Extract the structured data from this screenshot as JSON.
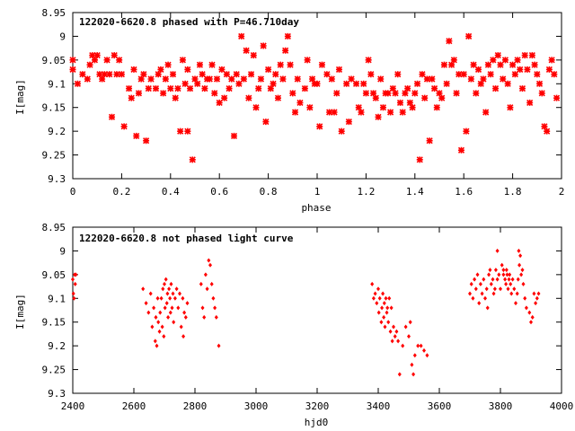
{
  "chart_data": [
    {
      "type": "scatter",
      "title": "122020-6620.8 phased with P=46.710day",
      "xlabel": "phase",
      "ylabel": "I[mag]",
      "xlim": [
        0,
        2
      ],
      "ylim": [
        9.3,
        8.95
      ],
      "y_inverted": true,
      "xticks": [
        "0",
        "0.2",
        "0.4",
        "0.6",
        "0.8",
        "1",
        "1.2",
        "1.4",
        "1.6",
        "1.8",
        "2"
      ],
      "yticks": [
        "8.95",
        "9",
        "9.05",
        "9.1",
        "9.15",
        "9.2",
        "9.25",
        "9.3"
      ],
      "marker": "star",
      "color": "#ff0000",
      "grid": false,
      "points": [
        [
          0.0,
          9.05
        ],
        [
          0.0,
          9.07
        ],
        [
          0.02,
          9.1
        ],
        [
          0.04,
          9.08
        ],
        [
          0.06,
          9.09
        ],
        [
          0.07,
          9.06
        ],
        [
          0.08,
          9.04
        ],
        [
          0.09,
          9.05
        ],
        [
          0.1,
          9.04
        ],
        [
          0.11,
          9.08
        ],
        [
          0.12,
          9.09
        ],
        [
          0.13,
          9.08
        ],
        [
          0.14,
          9.05
        ],
        [
          0.15,
          9.08
        ],
        [
          0.16,
          9.17
        ],
        [
          0.17,
          9.04
        ],
        [
          0.18,
          9.08
        ],
        [
          0.19,
          9.05
        ],
        [
          0.2,
          9.08
        ],
        [
          0.21,
          9.19
        ],
        [
          0.23,
          9.11
        ],
        [
          0.24,
          9.13
        ],
        [
          0.25,
          9.07
        ],
        [
          0.26,
          9.21
        ],
        [
          0.27,
          9.12
        ],
        [
          0.28,
          9.09
        ],
        [
          0.29,
          9.08
        ],
        [
          0.3,
          9.22
        ],
        [
          0.31,
          9.11
        ],
        [
          0.32,
          9.09
        ],
        [
          0.34,
          9.11
        ],
        [
          0.35,
          9.08
        ],
        [
          0.36,
          9.07
        ],
        [
          0.37,
          9.12
        ],
        [
          0.38,
          9.09
        ],
        [
          0.39,
          9.06
        ],
        [
          0.4,
          9.11
        ],
        [
          0.41,
          9.08
        ],
        [
          0.42,
          9.13
        ],
        [
          0.43,
          9.11
        ],
        [
          0.44,
          9.2
        ],
        [
          0.45,
          9.05
        ],
        [
          0.46,
          9.1
        ],
        [
          0.47,
          9.07
        ],
        [
          0.47,
          9.2
        ],
        [
          0.48,
          9.11
        ],
        [
          0.49,
          9.26
        ],
        [
          0.5,
          9.09
        ],
        [
          0.51,
          9.1
        ],
        [
          0.52,
          9.06
        ],
        [
          0.53,
          9.08
        ],
        [
          0.54,
          9.11
        ],
        [
          0.55,
          9.09
        ],
        [
          0.56,
          9.09
        ],
        [
          0.57,
          9.06
        ],
        [
          0.58,
          9.12
        ],
        [
          0.59,
          9.09
        ],
        [
          0.6,
          9.14
        ],
        [
          0.61,
          9.07
        ],
        [
          0.62,
          9.13
        ],
        [
          0.63,
          9.08
        ],
        [
          0.64,
          9.11
        ],
        [
          0.65,
          9.09
        ],
        [
          0.66,
          9.21
        ],
        [
          0.67,
          9.08
        ],
        [
          0.68,
          9.1
        ],
        [
          0.69,
          9.0
        ],
        [
          0.7,
          9.09
        ],
        [
          0.71,
          9.03
        ],
        [
          0.72,
          9.13
        ],
        [
          0.73,
          9.08
        ],
        [
          0.74,
          9.04
        ],
        [
          0.75,
          9.15
        ],
        [
          0.76,
          9.11
        ],
        [
          0.77,
          9.09
        ],
        [
          0.78,
          9.02
        ],
        [
          0.79,
          9.18
        ],
        [
          0.8,
          9.07
        ],
        [
          0.81,
          9.11
        ],
        [
          0.82,
          9.1
        ],
        [
          0.83,
          9.08
        ],
        [
          0.84,
          9.13
        ],
        [
          0.85,
          9.06
        ],
        [
          0.86,
          9.09
        ],
        [
          0.87,
          9.03
        ],
        [
          0.88,
          9.0
        ],
        [
          0.89,
          9.06
        ],
        [
          0.9,
          9.12
        ],
        [
          0.91,
          9.16
        ],
        [
          0.92,
          9.09
        ],
        [
          0.93,
          9.14
        ],
        [
          0.95,
          9.11
        ],
        [
          0.96,
          9.05
        ],
        [
          0.97,
          9.15
        ],
        [
          0.98,
          9.09
        ],
        [
          0.99,
          9.1
        ],
        [
          1.0,
          9.1
        ],
        [
          1.01,
          9.19
        ],
        [
          1.02,
          9.06
        ],
        [
          1.04,
          9.08
        ],
        [
          1.05,
          9.16
        ],
        [
          1.06,
          9.09
        ],
        [
          1.07,
          9.16
        ],
        [
          1.08,
          9.12
        ],
        [
          1.09,
          9.07
        ],
        [
          1.1,
          9.2
        ],
        [
          1.12,
          9.1
        ],
        [
          1.13,
          9.18
        ],
        [
          1.14,
          9.09
        ],
        [
          1.16,
          9.1
        ],
        [
          1.17,
          9.15
        ],
        [
          1.18,
          9.16
        ],
        [
          1.19,
          9.1
        ],
        [
          1.2,
          9.12
        ],
        [
          1.21,
          9.05
        ],
        [
          1.22,
          9.08
        ],
        [
          1.23,
          9.12
        ],
        [
          1.24,
          9.13
        ],
        [
          1.25,
          9.17
        ],
        [
          1.26,
          9.09
        ],
        [
          1.27,
          9.15
        ],
        [
          1.28,
          9.12
        ],
        [
          1.29,
          9.12
        ],
        [
          1.3,
          9.16
        ],
        [
          1.31,
          9.11
        ],
        [
          1.32,
          9.12
        ],
        [
          1.33,
          9.08
        ],
        [
          1.34,
          9.14
        ],
        [
          1.35,
          9.16
        ],
        [
          1.36,
          9.12
        ],
        [
          1.37,
          9.11
        ],
        [
          1.38,
          9.14
        ],
        [
          1.39,
          9.15
        ],
        [
          1.4,
          9.12
        ],
        [
          1.41,
          9.1
        ],
        [
          1.42,
          9.26
        ],
        [
          1.43,
          9.08
        ],
        [
          1.44,
          9.13
        ],
        [
          1.45,
          9.09
        ],
        [
          1.46,
          9.22
        ],
        [
          1.47,
          9.09
        ],
        [
          1.48,
          9.11
        ],
        [
          1.49,
          9.15
        ],
        [
          1.5,
          9.12
        ],
        [
          1.51,
          9.13
        ],
        [
          1.52,
          9.06
        ],
        [
          1.53,
          9.1
        ],
        [
          1.54,
          9.01
        ],
        [
          1.55,
          9.06
        ],
        [
          1.56,
          9.05
        ],
        [
          1.57,
          9.12
        ],
        [
          1.58,
          9.08
        ],
        [
          1.59,
          9.24
        ],
        [
          1.6,
          9.08
        ],
        [
          1.61,
          9.2
        ],
        [
          1.62,
          9.0
        ],
        [
          1.63,
          9.09
        ],
        [
          1.64,
          9.06
        ],
        [
          1.65,
          9.12
        ],
        [
          1.66,
          9.07
        ],
        [
          1.67,
          9.1
        ],
        [
          1.68,
          9.09
        ],
        [
          1.69,
          9.16
        ],
        [
          1.7,
          9.06
        ],
        [
          1.71,
          9.08
        ],
        [
          1.72,
          9.05
        ],
        [
          1.73,
          9.11
        ],
        [
          1.74,
          9.04
        ],
        [
          1.75,
          9.06
        ],
        [
          1.76,
          9.09
        ],
        [
          1.77,
          9.05
        ],
        [
          1.78,
          9.1
        ],
        [
          1.79,
          9.15
        ],
        [
          1.8,
          9.06
        ],
        [
          1.81,
          9.08
        ],
        [
          1.82,
          9.05
        ],
        [
          1.83,
          9.07
        ],
        [
          1.84,
          9.11
        ],
        [
          1.85,
          9.04
        ],
        [
          1.86,
          9.07
        ],
        [
          1.87,
          9.14
        ],
        [
          1.88,
          9.04
        ],
        [
          1.89,
          9.06
        ],
        [
          1.9,
          9.08
        ],
        [
          1.91,
          9.1
        ],
        [
          1.92,
          9.12
        ],
        [
          1.93,
          9.19
        ],
        [
          1.94,
          9.2
        ],
        [
          1.95,
          9.07
        ],
        [
          1.96,
          9.05
        ],
        [
          1.97,
          9.08
        ],
        [
          1.98,
          9.13
        ]
      ]
    },
    {
      "type": "scatter",
      "title": "122020-6620.8 not phased light curve",
      "xlabel": "hjd0",
      "ylabel": "I[mag]",
      "xlim": [
        2400,
        4000
      ],
      "ylim": [
        9.3,
        8.95
      ],
      "y_inverted": true,
      "xticks": [
        "2400",
        "2600",
        "2800",
        "3000",
        "3200",
        "3400",
        "3600",
        "3800",
        "4000"
      ],
      "yticks": [
        "8.95",
        "9",
        "9.05",
        "9.1",
        "9.15",
        "9.2",
        "9.25",
        "9.3"
      ],
      "marker": "diamond",
      "color": "#ff0000",
      "grid": false,
      "points": [
        [
          2400,
          9.06
        ],
        [
          2402,
          9.09
        ],
        [
          2404,
          9.1
        ],
        [
          2406,
          9.05
        ],
        [
          2408,
          9.07
        ],
        [
          2410,
          9.05
        ],
        [
          2630,
          9.08
        ],
        [
          2640,
          9.11
        ],
        [
          2648,
          9.13
        ],
        [
          2655,
          9.09
        ],
        [
          2660,
          9.16
        ],
        [
          2665,
          9.12
        ],
        [
          2670,
          9.19
        ],
        [
          2672,
          9.14
        ],
        [
          2675,
          9.2
        ],
        [
          2678,
          9.1
        ],
        [
          2680,
          9.15
        ],
        [
          2684,
          9.17
        ],
        [
          2686,
          9.13
        ],
        [
          2690,
          9.1
        ],
        [
          2693,
          9.16
        ],
        [
          2695,
          9.08
        ],
        [
          2698,
          9.18
        ],
        [
          2700,
          9.07
        ],
        [
          2702,
          9.12
        ],
        [
          2705,
          9.06
        ],
        [
          2708,
          9.11
        ],
        [
          2710,
          9.09
        ],
        [
          2712,
          9.14
        ],
        [
          2715,
          9.08
        ],
        [
          2718,
          9.1
        ],
        [
          2720,
          9.13
        ],
        [
          2722,
          9.07
        ],
        [
          2725,
          9.12
        ],
        [
          2728,
          9.09
        ],
        [
          2730,
          9.15
        ],
        [
          2735,
          9.1
        ],
        [
          2740,
          9.08
        ],
        [
          2745,
          9.12
        ],
        [
          2750,
          9.09
        ],
        [
          2755,
          9.16
        ],
        [
          2760,
          9.1
        ],
        [
          2762,
          9.18
        ],
        [
          2765,
          9.13
        ],
        [
          2770,
          9.14
        ],
        [
          2775,
          9.11
        ],
        [
          2820,
          9.07
        ],
        [
          2825,
          9.12
        ],
        [
          2830,
          9.14
        ],
        [
          2835,
          9.05
        ],
        [
          2840,
          9.08
        ],
        [
          2845,
          9.02
        ],
        [
          2850,
          9.03
        ],
        [
          2855,
          9.07
        ],
        [
          2860,
          9.1
        ],
        [
          2865,
          9.12
        ],
        [
          2870,
          9.14
        ],
        [
          2878,
          9.2
        ],
        [
          3380,
          9.07
        ],
        [
          3385,
          9.1
        ],
        [
          3390,
          9.09
        ],
        [
          3395,
          9.11
        ],
        [
          3400,
          9.08
        ],
        [
          3402,
          9.13
        ],
        [
          3405,
          9.1
        ],
        [
          3410,
          9.15
        ],
        [
          3412,
          9.12
        ],
        [
          3415,
          9.09
        ],
        [
          3418,
          9.14
        ],
        [
          3420,
          9.11
        ],
        [
          3422,
          9.16
        ],
        [
          3425,
          9.1
        ],
        [
          3428,
          9.13
        ],
        [
          3430,
          9.12
        ],
        [
          3433,
          9.15
        ],
        [
          3436,
          9.1
        ],
        [
          3440,
          9.17
        ],
        [
          3443,
          9.12
        ],
        [
          3446,
          9.19
        ],
        [
          3450,
          9.16
        ],
        [
          3455,
          9.18
        ],
        [
          3460,
          9.17
        ],
        [
          3465,
          9.19
        ],
        [
          3470,
          9.26
        ],
        [
          3480,
          9.2
        ],
        [
          3490,
          9.16
        ],
        [
          3500,
          9.18
        ],
        [
          3505,
          9.15
        ],
        [
          3510,
          9.24
        ],
        [
          3515,
          9.26
        ],
        [
          3520,
          9.22
        ],
        [
          3530,
          9.2
        ],
        [
          3540,
          9.2
        ],
        [
          3550,
          9.21
        ],
        [
          3560,
          9.22
        ],
        [
          3700,
          9.09
        ],
        [
          3705,
          9.07
        ],
        [
          3710,
          9.1
        ],
        [
          3715,
          9.06
        ],
        [
          3720,
          9.08
        ],
        [
          3725,
          9.05
        ],
        [
          3730,
          9.11
        ],
        [
          3735,
          9.07
        ],
        [
          3740,
          9.09
        ],
        [
          3745,
          9.06
        ],
        [
          3750,
          9.1
        ],
        [
          3755,
          9.08
        ],
        [
          3758,
          9.12
        ],
        [
          3762,
          9.05
        ],
        [
          3766,
          9.04
        ],
        [
          3770,
          9.07
        ],
        [
          3775,
          9.06
        ],
        [
          3778,
          9.09
        ],
        [
          3782,
          9.08
        ],
        [
          3785,
          9.04
        ],
        [
          3790,
          9.06
        ],
        [
          3795,
          9.05
        ],
        [
          3800,
          9.08
        ],
        [
          3805,
          9.03
        ],
        [
          3810,
          9.04
        ],
        [
          3815,
          9.06
        ],
        [
          3818,
          9.07
        ],
        [
          3820,
          9.04
        ],
        [
          3822,
          9.05
        ],
        [
          3825,
          9.08
        ],
        [
          3828,
          9.06
        ],
        [
          3830,
          9.05
        ],
        [
          3833,
          9.07
        ],
        [
          3836,
          9.09
        ],
        [
          3840,
          9.06
        ],
        [
          3845,
          9.08
        ],
        [
          3850,
          9.11
        ],
        [
          3855,
          9.09
        ],
        [
          3858,
          9.06
        ],
        [
          3862,
          9.03
        ],
        [
          3865,
          9.01
        ],
        [
          3868,
          9.05
        ],
        [
          3872,
          9.04
        ],
        [
          3875,
          9.07
        ],
        [
          3880,
          9.1
        ],
        [
          3885,
          9.12
        ],
        [
          3895,
          9.13
        ],
        [
          3900,
          9.15
        ],
        [
          3905,
          9.14
        ],
        [
          3910,
          9.09
        ],
        [
          3915,
          9.11
        ],
        [
          3920,
          9.1
        ],
        [
          3925,
          9.09
        ],
        [
          3790,
          9.0
        ],
        [
          3810,
          9.05
        ],
        [
          3860,
          9.0
        ]
      ]
    }
  ]
}
